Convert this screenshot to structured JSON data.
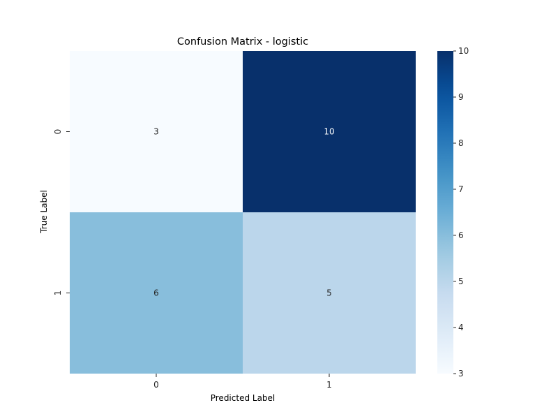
{
  "chart_data": {
    "type": "heatmap",
    "title": "Confusion Matrix - logistic",
    "xlabel": "Predicted Label",
    "ylabel": "True Label",
    "x_categories": [
      "0",
      "1"
    ],
    "y_categories": [
      "0",
      "1"
    ],
    "values": [
      [
        3,
        10
      ],
      [
        6,
        5
      ]
    ],
    "colormap": "Blues",
    "colorbar": {
      "min": 3,
      "max": 10,
      "ticks": [
        3,
        4,
        5,
        6,
        7,
        8,
        9,
        10
      ]
    },
    "grid": false,
    "annotated": true
  }
}
